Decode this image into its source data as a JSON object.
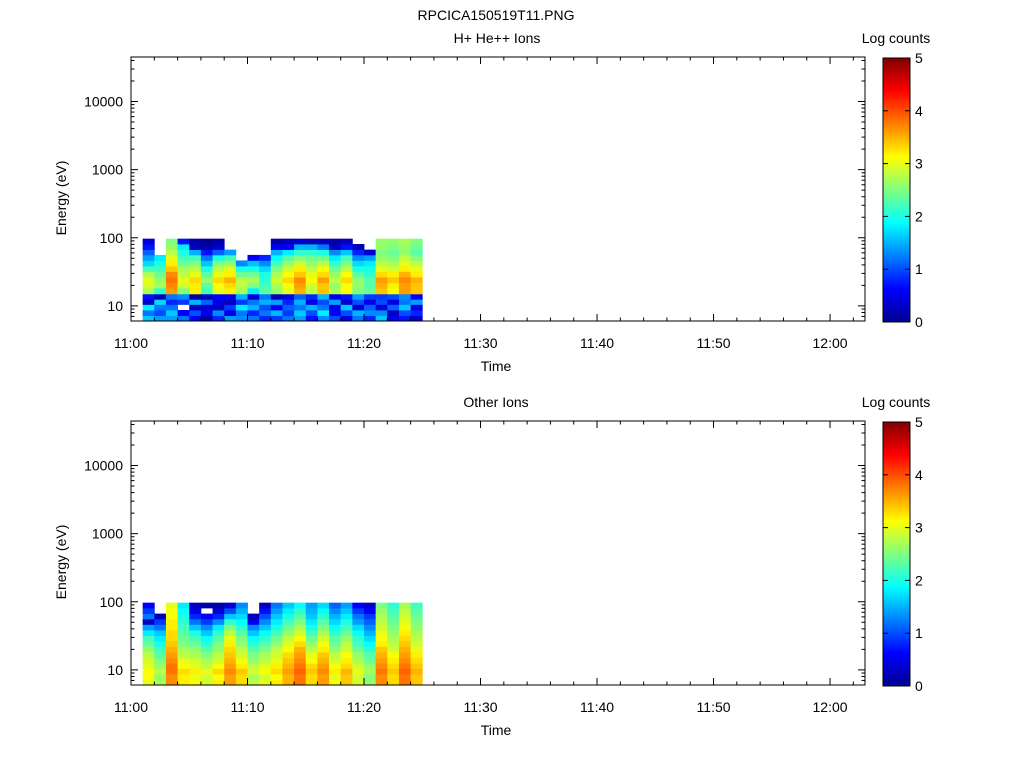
{
  "figure": {
    "title": "RPCICA150519T11.PNG"
  },
  "chart_data": [
    {
      "type": "heatmap",
      "title": "H+ He++ Ions",
      "xlabel": "Time",
      "ylabel": "Energy (eV)",
      "x_ticks": [
        "11:00",
        "11:10",
        "11:20",
        "11:30",
        "11:40",
        "11:50",
        "12:00"
      ],
      "y_scale": "log",
      "y_ticks": [
        "10",
        "100",
        "1000",
        "10000"
      ],
      "ylim": [
        6,
        45000
      ],
      "colorbar": {
        "label": "Log counts",
        "ticks": [
          "0",
          "1",
          "2",
          "3",
          "4",
          "5"
        ],
        "range": [
          0,
          5
        ]
      },
      "energy_bins_eV": [
        6,
        7.2,
        8.7,
        10.5,
        12.5,
        15,
        18.3,
        22,
        26.5,
        32,
        38.5,
        46.5,
        56,
        67,
        81,
        97
      ],
      "time_bins": [
        "11:01",
        "11:02",
        "11:03",
        "11:04",
        "11:05",
        "11:06",
        "11:07",
        "11:08",
        "11:09",
        "11:10",
        "11:11",
        "11:12",
        "11:13",
        "11:14",
        "11:15",
        "11:16",
        "11:17",
        "11:18",
        "11:19",
        "11:20",
        "11:21",
        "11:22",
        "11:23",
        "11:24"
      ],
      "log_counts": [
        [
          1.6,
          1.2,
          1.8,
          0.4,
          0.7,
          2.7,
          2.9,
          3.0,
          2.7,
          2.2,
          1.7,
          1.4,
          1.1,
          0.7,
          0.4
        ],
        [
          1.4,
          1.0,
          1.2,
          1.7,
          0.3,
          2.1,
          2.7,
          2.6,
          2.4,
          2.2,
          2.0,
          1.8,
          null,
          null,
          null
        ],
        [
          1.4,
          1.6,
          1.2,
          0.8,
          1.2,
          3.6,
          3.7,
          3.8,
          3.7,
          3.4,
          3.2,
          3.0,
          2.8,
          2.6,
          2.5
        ],
        [
          1.2,
          0.6,
          null,
          0.9,
          1.3,
          2.5,
          2.9,
          3.0,
          2.8,
          2.7,
          2.4,
          2.2,
          2.0,
          1.8,
          0.7
        ],
        [
          0.6,
          1.0,
          0.3,
          1.5,
          0.2,
          3.2,
          3.2,
          3.3,
          3.0,
          2.8,
          2.5,
          2.2,
          1.5,
          0.3,
          0.2
        ],
        [
          0.2,
          0.5,
          0.4,
          1.1,
          0.3,
          2.2,
          2.3,
          2.6,
          2.3,
          2.0,
          1.6,
          1.2,
          0.7,
          0.2,
          0.1
        ],
        [
          0.8,
          1.3,
          0.3,
          0.5,
          0.6,
          3.0,
          3.1,
          3.3,
          3.0,
          2.8,
          2.5,
          2.0,
          1.1,
          0.4,
          0.2
        ],
        [
          1.4,
          0.5,
          0.9,
          0.3,
          0.6,
          3.2,
          3.3,
          3.5,
          3.2,
          3.0,
          2.6,
          2.2,
          1.4,
          null,
          null
        ],
        [
          1.3,
          1.2,
          1.8,
          0.9,
          1.5,
          2.7,
          2.8,
          2.8,
          2.4,
          2.0,
          1.3,
          null,
          null,
          null,
          null
        ],
        [
          1.2,
          0.8,
          1.5,
          1.2,
          0.4,
          1.8,
          2.5,
          2.7,
          2.4,
          2.0,
          1.6,
          0.6,
          null,
          null,
          null
        ],
        [
          0.8,
          1.2,
          1.0,
          1.5,
          1.2,
          2.3,
          2.2,
          2.1,
          2.0,
          1.7,
          1.3,
          0.8,
          null,
          null,
          null
        ],
        [
          0.9,
          1.5,
          0.6,
          1.4,
          0.3,
          2.6,
          2.7,
          2.9,
          2.7,
          2.5,
          2.2,
          1.9,
          1.5,
          0.6,
          0.2
        ],
        [
          1.2,
          0.9,
          1.1,
          0.8,
          0.5,
          3.0,
          3.1,
          3.3,
          3.1,
          2.9,
          2.6,
          2.3,
          1.8,
          0.6,
          0.3
        ],
        [
          1.4,
          1.6,
          1.2,
          1.5,
          1.1,
          3.5,
          3.6,
          3.7,
          3.4,
          3.2,
          2.9,
          2.5,
          2.1,
          1.5,
          0.4
        ],
        [
          0.7,
          1.0,
          1.5,
          0.5,
          0.8,
          2.8,
          2.9,
          3.1,
          3.0,
          2.8,
          2.6,
          2.4,
          2.1,
          1.5,
          0.3
        ],
        [
          1.3,
          1.8,
          1.2,
          1.0,
          1.5,
          3.4,
          3.4,
          3.6,
          3.3,
          3.1,
          2.8,
          2.4,
          2.0,
          1.2,
          0.3
        ],
        [
          1.0,
          0.6,
          0.5,
          1.4,
          0.5,
          2.7,
          2.6,
          2.8,
          2.6,
          2.4,
          2.1,
          1.8,
          1.3,
          0.3,
          0.2
        ],
        [
          0.5,
          1.0,
          1.6,
          0.4,
          0.7,
          3.1,
          3.1,
          3.3,
          3.1,
          2.8,
          2.5,
          2.2,
          1.6,
          0.7,
          0.3
        ],
        [
          1.2,
          1.5,
          0.4,
          1.0,
          1.4,
          2.5,
          2.6,
          2.6,
          2.3,
          2.0,
          1.7,
          1.3,
          0.8,
          0.3,
          null
        ],
        [
          0.8,
          1.3,
          1.1,
          0.5,
          0.9,
          2.4,
          2.3,
          2.3,
          2.1,
          2.0,
          1.8,
          1.4,
          0.4,
          null,
          null
        ],
        [
          1.6,
          1.3,
          0.4,
          1.0,
          0.9,
          3.4,
          3.5,
          3.6,
          3.3,
          3.0,
          2.8,
          2.6,
          2.5,
          2.6,
          2.6
        ],
        [
          0.5,
          0.3,
          1.1,
          0.5,
          1.0,
          3.1,
          3.2,
          3.4,
          3.2,
          2.9,
          2.7,
          2.5,
          2.4,
          2.5,
          2.6
        ],
        [
          0.7,
          1.0,
          1.6,
          1.2,
          1.3,
          3.6,
          3.6,
          3.7,
          3.5,
          3.2,
          3.0,
          2.8,
          2.6,
          2.6,
          2.7
        ],
        [
          0.4,
          0.8,
          0.5,
          1.4,
          0.6,
          3.4,
          3.4,
          3.5,
          3.2,
          3.0,
          2.8,
          2.5,
          2.3,
          2.4,
          2.5
        ]
      ]
    },
    {
      "type": "heatmap",
      "title": "Other Ions",
      "xlabel": "Time",
      "ylabel": "Energy (eV)",
      "x_ticks": [
        "11:00",
        "11:10",
        "11:20",
        "11:30",
        "11:40",
        "11:50",
        "12:00"
      ],
      "y_scale": "log",
      "y_ticks": [
        "10",
        "100",
        "1000",
        "10000"
      ],
      "ylim": [
        6,
        45000
      ],
      "colorbar": {
        "label": "Log counts",
        "ticks": [
          "0",
          "1",
          "2",
          "3",
          "4",
          "5"
        ],
        "range": [
          0,
          5
        ]
      },
      "energy_bins_eV": [
        6,
        7.2,
        8.7,
        10.5,
        12.5,
        15,
        18.3,
        22,
        26.5,
        32,
        38.5,
        46.5,
        56,
        67,
        81,
        97
      ],
      "time_bins": [
        "11:01",
        "11:02",
        "11:03",
        "11:04",
        "11:05",
        "11:06",
        "11:07",
        "11:08",
        "11:09",
        "11:10",
        "11:11",
        "11:12",
        "11:13",
        "11:14",
        "11:15",
        "11:16",
        "11:17",
        "11:18",
        "11:19",
        "11:20",
        "11:21",
        "11:22",
        "11:23",
        "11:24"
      ],
      "log_counts": [
        [
          3.0,
          3.1,
          3.1,
          3.0,
          2.9,
          2.8,
          2.6,
          2.4,
          2.2,
          1.8,
          1.4,
          0.3,
          1.2,
          0.9,
          0.6
        ],
        [
          2.7,
          2.6,
          2.8,
          2.6,
          2.5,
          2.3,
          2.2,
          2.0,
          1.8,
          1.6,
          1.2,
          0.9,
          0.3,
          null,
          null
        ],
        [
          3.7,
          3.7,
          3.8,
          3.8,
          3.7,
          3.6,
          3.5,
          3.4,
          3.3,
          3.3,
          3.2,
          3.2,
          3.1,
          3.1,
          3.0
        ],
        [
          3.2,
          3.2,
          3.3,
          3.1,
          3.0,
          2.8,
          2.7,
          2.5,
          2.4,
          2.3,
          2.2,
          2.1,
          2.0,
          1.9,
          1.8
        ],
        [
          3.1,
          3.0,
          3.2,
          3.0,
          2.9,
          2.7,
          2.6,
          2.4,
          2.2,
          2.0,
          1.6,
          1.2,
          0.8,
          0.5,
          0.3
        ],
        [
          2.9,
          2.9,
          3.0,
          2.8,
          2.7,
          2.5,
          2.3,
          2.1,
          1.9,
          1.6,
          1.3,
          0.9,
          0.6,
          null,
          0.2
        ],
        [
          3.2,
          3.1,
          3.3,
          3.1,
          2.9,
          2.8,
          2.6,
          2.5,
          2.3,
          2.1,
          1.8,
          1.3,
          0.8,
          0.4,
          0.2
        ],
        [
          3.6,
          3.6,
          3.7,
          3.6,
          3.5,
          3.4,
          3.3,
          3.2,
          3.0,
          2.8,
          2.5,
          2.1,
          1.6,
          1.0,
          0.4
        ],
        [
          3.3,
          3.3,
          3.4,
          3.2,
          3.1,
          2.9,
          2.8,
          2.6,
          2.5,
          2.3,
          2.1,
          1.9,
          1.7,
          1.5,
          1.3
        ],
        [
          2.8,
          2.7,
          2.9,
          2.8,
          2.6,
          2.5,
          2.3,
          2.1,
          1.9,
          1.6,
          1.3,
          0.6,
          0.3,
          null,
          null
        ],
        [
          3.0,
          2.9,
          3.1,
          3.0,
          2.8,
          2.7,
          2.5,
          2.3,
          2.1,
          1.9,
          1.6,
          1.3,
          1.0,
          0.7,
          0.3
        ],
        [
          3.2,
          3.1,
          3.3,
          3.2,
          3.0,
          2.9,
          2.8,
          2.6,
          2.4,
          2.2,
          2.0,
          1.8,
          1.6,
          1.4,
          1.2
        ],
        [
          3.5,
          3.5,
          3.6,
          3.5,
          3.4,
          3.3,
          3.1,
          3.0,
          2.8,
          2.6,
          2.4,
          2.2,
          2.0,
          1.8,
          1.6
        ],
        [
          3.8,
          3.8,
          3.9,
          3.8,
          3.7,
          3.6,
          3.5,
          3.3,
          3.1,
          2.9,
          2.7,
          2.5,
          2.3,
          2.1,
          1.9
        ],
        [
          3.3,
          3.3,
          3.4,
          3.3,
          3.1,
          3.0,
          2.8,
          2.6,
          2.4,
          2.2,
          2.0,
          1.8,
          1.6,
          1.5,
          1.4
        ],
        [
          3.6,
          3.6,
          3.7,
          3.6,
          3.5,
          3.4,
          3.2,
          3.1,
          2.9,
          2.7,
          2.5,
          2.3,
          2.1,
          1.9,
          1.7
        ],
        [
          3.1,
          3.0,
          3.2,
          3.1,
          2.9,
          2.8,
          2.6,
          2.4,
          2.3,
          2.1,
          1.9,
          1.7,
          1.5,
          1.3,
          1.1
        ],
        [
          3.4,
          3.4,
          3.5,
          3.3,
          3.2,
          3.1,
          2.9,
          2.8,
          2.6,
          2.4,
          2.2,
          2.0,
          1.8,
          1.6,
          1.4
        ],
        [
          2.9,
          2.9,
          3.0,
          2.9,
          2.7,
          2.6,
          2.4,
          2.2,
          2.1,
          1.9,
          1.7,
          1.4,
          1.2,
          0.9,
          0.6
        ],
        [
          2.6,
          2.5,
          2.7,
          2.6,
          2.4,
          2.3,
          2.1,
          1.9,
          1.7,
          1.5,
          1.3,
          1.1,
          0.9,
          0.6,
          0.4
        ],
        [
          3.7,
          3.7,
          3.8,
          3.7,
          3.6,
          3.5,
          3.4,
          3.2,
          3.1,
          3.0,
          2.9,
          2.8,
          2.7,
          2.6,
          2.5
        ],
        [
          3.3,
          3.3,
          3.4,
          3.3,
          3.2,
          3.1,
          2.9,
          2.8,
          2.7,
          2.6,
          2.5,
          2.4,
          2.3,
          2.2,
          2.1
        ],
        [
          3.8,
          3.8,
          3.9,
          3.8,
          3.7,
          3.6,
          3.5,
          3.4,
          3.3,
          3.2,
          3.1,
          3.0,
          2.9,
          2.8,
          2.7
        ],
        [
          3.4,
          3.4,
          3.5,
          3.4,
          3.3,
          3.2,
          3.0,
          2.9,
          2.8,
          2.7,
          2.6,
          2.5,
          2.4,
          2.3,
          2.2
        ]
      ]
    }
  ]
}
